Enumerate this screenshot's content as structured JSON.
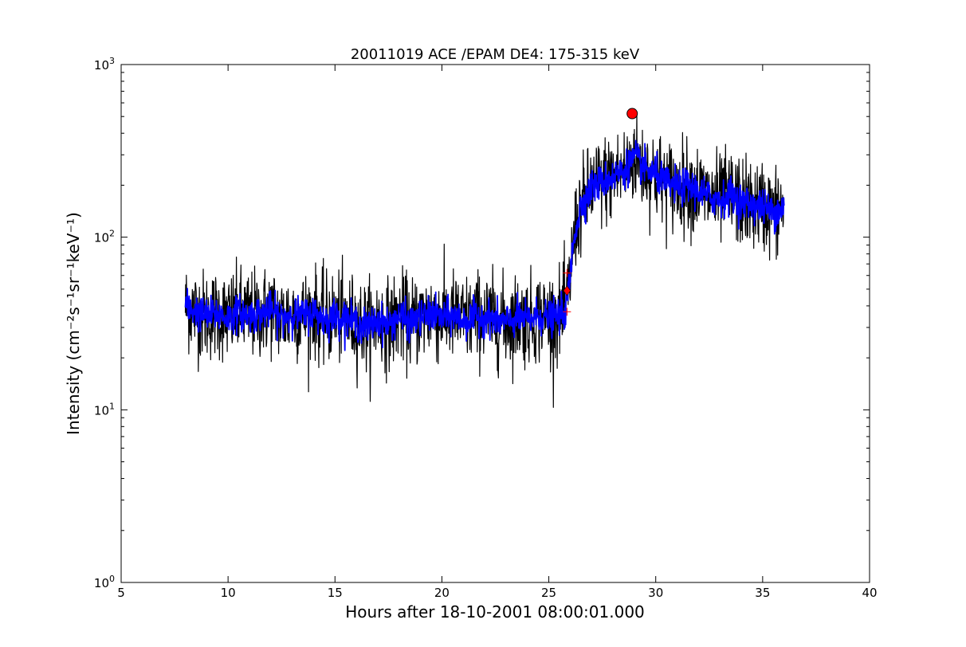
{
  "chart_data": {
    "type": "line",
    "title": "20011019 ACE /EPAM DE4: 175-315 keV",
    "xlabel": "Hours after 18-10-2001 08:00:01.000",
    "ylabel": "Intensity (cm⁻²s⁻¹sr⁻¹keV⁻¹)",
    "xlim": [
      5,
      40
    ],
    "ylim": [
      1,
      1000
    ],
    "yscale": "log",
    "grid": false,
    "x_ticks": [
      5,
      10,
      15,
      20,
      25,
      30,
      35,
      40
    ],
    "x_tick_labels": [
      "5",
      "10",
      "15",
      "20",
      "25",
      "30",
      "35",
      "40"
    ],
    "y_ticks": [
      1,
      10,
      100,
      1000
    ],
    "y_tick_labels": [
      {
        "base": "10",
        "exp": "0"
      },
      {
        "base": "10",
        "exp": "1"
      },
      {
        "base": "10",
        "exp": "2"
      },
      {
        "base": "10",
        "exp": "3"
      }
    ],
    "series": [
      {
        "role": "raw",
        "color": "#000000",
        "x": [
          8.0,
          8.5,
          9.0,
          9.5,
          10.0,
          10.5,
          11.0,
          11.5,
          12.0,
          12.5,
          13.0,
          13.5,
          14.0,
          14.5,
          15.0,
          15.5,
          16.0,
          16.5,
          17.0,
          17.5,
          18.0,
          18.5,
          19.0,
          19.5,
          20.0,
          20.5,
          21.0,
          21.5,
          22.0,
          22.5,
          23.0,
          23.5,
          24.0,
          24.5,
          25.0,
          25.5,
          25.8,
          26.0,
          26.2,
          26.5,
          27.0,
          27.5,
          28.0,
          28.5,
          29.0,
          29.5,
          30.0,
          30.5,
          31.0,
          31.5,
          32.0,
          32.5,
          33.0,
          33.5,
          34.0,
          34.5,
          35.0,
          35.5,
          36.0
        ],
        "y": [
          40,
          37,
          35,
          36,
          34,
          37,
          35,
          36,
          38,
          34,
          36,
          35,
          37,
          33,
          35,
          34,
          32,
          30,
          33,
          31,
          35,
          32,
          34,
          36,
          34,
          35,
          33,
          34,
          35,
          33,
          32,
          34,
          33,
          35,
          34,
          35,
          38,
          60,
          105,
          150,
          195,
          210,
          225,
          240,
          290,
          250,
          230,
          205,
          195,
          200,
          185,
          170,
          165,
          175,
          160,
          155,
          150,
          140,
          150
        ],
        "noise_dex": 0.13
      },
      {
        "role": "smoothed",
        "color": "#0000ff",
        "x": [
          8.0,
          8.5,
          9.0,
          9.5,
          10.0,
          10.5,
          11.0,
          11.5,
          12.0,
          12.5,
          13.0,
          13.5,
          14.0,
          14.5,
          15.0,
          15.5,
          16.0,
          16.5,
          17.0,
          17.5,
          18.0,
          18.5,
          19.0,
          19.5,
          20.0,
          20.5,
          21.0,
          21.5,
          22.0,
          22.5,
          23.0,
          23.5,
          24.0,
          24.5,
          25.0,
          25.5,
          25.8,
          26.0,
          26.2,
          26.5,
          27.0,
          27.5,
          28.0,
          28.5,
          29.0,
          29.5,
          30.0,
          30.5,
          31.0,
          31.5,
          32.0,
          32.5,
          33.0,
          33.5,
          34.0,
          34.5,
          35.0,
          35.5,
          36.0
        ],
        "y": [
          40,
          37,
          35,
          36,
          34,
          37,
          35,
          36,
          38,
          34,
          36,
          35,
          37,
          33,
          35,
          34,
          32,
          30,
          33,
          31,
          35,
          32,
          34,
          36,
          34,
          35,
          33,
          34,
          35,
          33,
          32,
          34,
          33,
          35,
          34,
          35,
          38,
          60,
          105,
          150,
          195,
          210,
          225,
          240,
          290,
          250,
          230,
          205,
          195,
          200,
          185,
          170,
          165,
          175,
          160,
          155,
          150,
          140,
          150
        ],
        "noise_dex": 0.05
      }
    ],
    "markers": [
      {
        "kind": "circle",
        "x": 28.9,
        "y": 520,
        "color": "#ff0000"
      },
      {
        "kind": "diamond",
        "x": 25.85,
        "y": 49,
        "color": "#ff0000"
      },
      {
        "kind": "plus",
        "x": 25.85,
        "y": 62,
        "color": "#ff0000"
      },
      {
        "kind": "plus",
        "x": 25.85,
        "y": 37,
        "color": "#ff0000"
      }
    ]
  }
}
